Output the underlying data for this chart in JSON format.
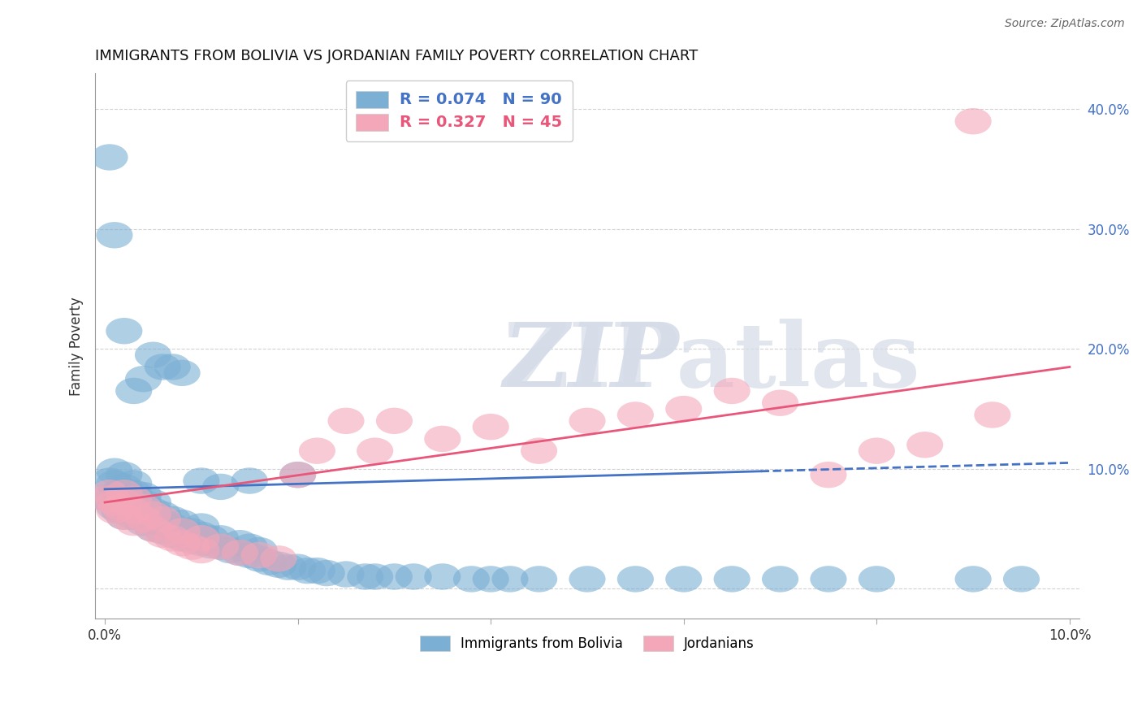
{
  "title": "IMMIGRANTS FROM BOLIVIA VS JORDANIAN FAMILY POVERTY CORRELATION CHART",
  "source_text": "Source: ZipAtlas.com",
  "ylabel": "Family Poverty",
  "blue_R": 0.074,
  "blue_N": 90,
  "pink_R": 0.327,
  "pink_N": 45,
  "blue_color": "#7bafd4",
  "pink_color": "#f4a7b9",
  "blue_line_color": "#4472C4",
  "pink_line_color": "#E8567A",
  "grid_color": "#cccccc",
  "xlim": [
    -0.001,
    0.101
  ],
  "ylim": [
    -0.025,
    0.43
  ],
  "blue_line_x0": 0.0,
  "blue_line_y0": 0.083,
  "blue_line_x1": 0.1,
  "blue_line_y1": 0.105,
  "pink_line_x0": 0.0,
  "pink_line_y0": 0.072,
  "pink_line_x1": 0.1,
  "pink_line_y1": 0.185,
  "blue_scatter_x": [
    0.0003,
    0.0005,
    0.001,
    0.001,
    0.001,
    0.001,
    0.0015,
    0.0015,
    0.002,
    0.002,
    0.002,
    0.002,
    0.002,
    0.003,
    0.003,
    0.003,
    0.003,
    0.003,
    0.004,
    0.004,
    0.004,
    0.004,
    0.005,
    0.005,
    0.005,
    0.005,
    0.006,
    0.006,
    0.006,
    0.007,
    0.007,
    0.007,
    0.008,
    0.008,
    0.008,
    0.009,
    0.009,
    0.01,
    0.01,
    0.01,
    0.011,
    0.011,
    0.012,
    0.012,
    0.013,
    0.014,
    0.014,
    0.015,
    0.015,
    0.016,
    0.016,
    0.017,
    0.018,
    0.019,
    0.02,
    0.021,
    0.022,
    0.023,
    0.025,
    0.027,
    0.028,
    0.03,
    0.032,
    0.035,
    0.038,
    0.04,
    0.042,
    0.045,
    0.05,
    0.055,
    0.06,
    0.065,
    0.07,
    0.075,
    0.08,
    0.09,
    0.095,
    0.0005,
    0.001,
    0.002,
    0.003,
    0.004,
    0.005,
    0.006,
    0.007,
    0.008,
    0.01,
    0.012,
    0.015,
    0.02
  ],
  "blue_scatter_y": [
    0.075,
    0.09,
    0.068,
    0.078,
    0.088,
    0.098,
    0.065,
    0.08,
    0.06,
    0.07,
    0.075,
    0.085,
    0.095,
    0.06,
    0.065,
    0.072,
    0.08,
    0.088,
    0.055,
    0.062,
    0.072,
    0.078,
    0.05,
    0.058,
    0.065,
    0.072,
    0.048,
    0.055,
    0.062,
    0.045,
    0.052,
    0.058,
    0.042,
    0.048,
    0.055,
    0.04,
    0.048,
    0.038,
    0.045,
    0.052,
    0.036,
    0.042,
    0.035,
    0.042,
    0.032,
    0.03,
    0.038,
    0.028,
    0.035,
    0.025,
    0.032,
    0.022,
    0.02,
    0.018,
    0.018,
    0.015,
    0.015,
    0.013,
    0.012,
    0.01,
    0.01,
    0.01,
    0.01,
    0.01,
    0.008,
    0.008,
    0.008,
    0.008,
    0.008,
    0.008,
    0.008,
    0.008,
    0.008,
    0.008,
    0.008,
    0.008,
    0.008,
    0.36,
    0.295,
    0.215,
    0.165,
    0.175,
    0.195,
    0.185,
    0.185,
    0.18,
    0.09,
    0.085,
    0.09,
    0.095
  ],
  "pink_scatter_x": [
    0.0002,
    0.0005,
    0.001,
    0.001,
    0.0015,
    0.002,
    0.002,
    0.002,
    0.003,
    0.003,
    0.003,
    0.004,
    0.004,
    0.005,
    0.005,
    0.006,
    0.006,
    0.007,
    0.008,
    0.008,
    0.009,
    0.01,
    0.01,
    0.012,
    0.014,
    0.016,
    0.018,
    0.02,
    0.022,
    0.025,
    0.028,
    0.03,
    0.035,
    0.04,
    0.045,
    0.05,
    0.055,
    0.06,
    0.065,
    0.07,
    0.075,
    0.08,
    0.085,
    0.09,
    0.092
  ],
  "pink_scatter_y": [
    0.075,
    0.08,
    0.065,
    0.072,
    0.068,
    0.06,
    0.072,
    0.08,
    0.055,
    0.065,
    0.075,
    0.058,
    0.068,
    0.05,
    0.062,
    0.045,
    0.058,
    0.042,
    0.038,
    0.048,
    0.035,
    0.032,
    0.042,
    0.035,
    0.03,
    0.028,
    0.025,
    0.095,
    0.115,
    0.14,
    0.115,
    0.14,
    0.125,
    0.135,
    0.115,
    0.14,
    0.145,
    0.15,
    0.165,
    0.155,
    0.095,
    0.115,
    0.12,
    0.39,
    0.145
  ]
}
